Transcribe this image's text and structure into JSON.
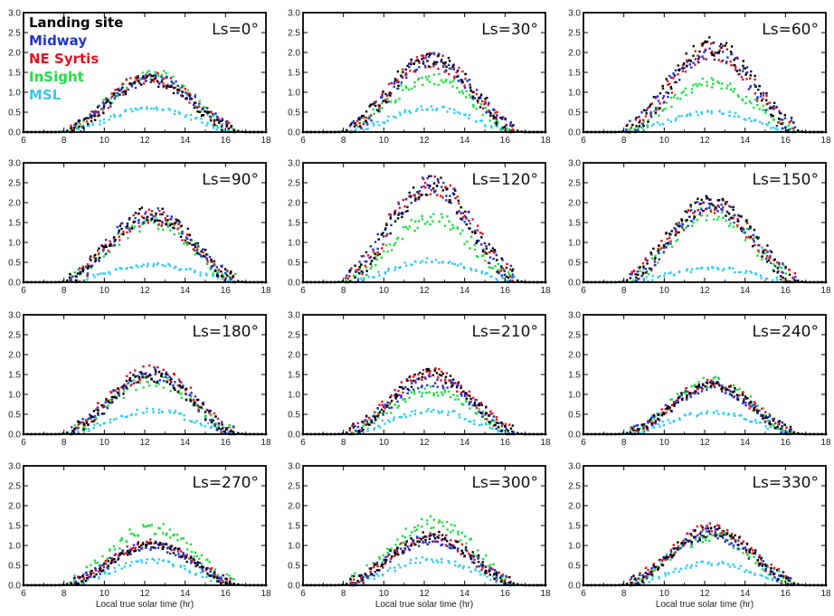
{
  "chart_data": {
    "type": "scatter",
    "xlabel": "Local true solar time (hr)",
    "x_ticks": [
      "6",
      "8",
      "10",
      "12",
      "14",
      "16",
      "18"
    ],
    "y_ticks": [
      "0.0",
      "0.5",
      "1.0",
      "1.5",
      "2.0",
      "2.5",
      "3.0"
    ],
    "xlim": [
      6,
      18
    ],
    "ylim": [
      0,
      3
    ],
    "grid": false,
    "legend": {
      "placement": "top-left of first panel",
      "title": "Landing site",
      "entries": [
        {
          "label": "Midway",
          "color": "#2233cc"
        },
        {
          "label": "NE Syrtis",
          "color": "#e0141e"
        },
        {
          "label": "InSight",
          "color": "#22dd44"
        },
        {
          "label": "MSL",
          "color": "#33ccee"
        }
      ],
      "title_color": "#000000"
    },
    "series_colors": {
      "landing_site": "#000000",
      "midway": "#2233cc",
      "ne_syrtis": "#e0141e",
      "insight": "#22dd44",
      "msl": "#33ccee"
    },
    "panels": [
      {
        "label": "Ls=0°",
        "peaks": {
          "landing_site": 1.3,
          "midway": 1.35,
          "ne_syrtis": 1.4,
          "insight": 1.45,
          "msl": 0.6
        }
      },
      {
        "label": "Ls=30°",
        "peaks": {
          "landing_site": 1.85,
          "midway": 1.8,
          "ne_syrtis": 1.8,
          "insight": 1.35,
          "msl": 0.6
        }
      },
      {
        "label": "Ls=60°",
        "peaks": {
          "landing_site": 2.15,
          "midway": 2.05,
          "ne_syrtis": 2.05,
          "insight": 1.25,
          "msl": 0.5
        }
      },
      {
        "label": "Ls=90°",
        "peaks": {
          "landing_site": 1.75,
          "midway": 1.7,
          "ne_syrtis": 1.65,
          "insight": 1.5,
          "msl": 0.45
        }
      },
      {
        "label": "Ls=120°",
        "peaks": {
          "landing_site": 2.45,
          "midway": 2.45,
          "ne_syrtis": 2.45,
          "insight": 1.6,
          "msl": 0.55
        }
      },
      {
        "label": "Ls=150°",
        "peaks": {
          "landing_site": 2.0,
          "midway": 1.95,
          "ne_syrtis": 1.95,
          "insight": 1.75,
          "msl": 0.35
        }
      },
      {
        "label": "Ls=180°",
        "peaks": {
          "landing_site": 1.45,
          "midway": 1.5,
          "ne_syrtis": 1.6,
          "insight": 1.35,
          "msl": 0.6
        }
      },
      {
        "label": "Ls=210°",
        "peaks": {
          "landing_site": 1.5,
          "midway": 1.35,
          "ne_syrtis": 1.5,
          "insight": 1.1,
          "msl": 0.6
        }
      },
      {
        "label": "Ls=240°",
        "peaks": {
          "landing_site": 1.2,
          "midway": 1.2,
          "ne_syrtis": 1.25,
          "insight": 1.3,
          "msl": 0.55
        }
      },
      {
        "label": "Ls=270°",
        "peaks": {
          "landing_site": 1.0,
          "midway": 1.0,
          "ne_syrtis": 1.05,
          "insight": 1.45,
          "msl": 0.6
        }
      },
      {
        "label": "Ls=300°",
        "peaks": {
          "landing_site": 1.25,
          "midway": 1.15,
          "ne_syrtis": 1.2,
          "insight": 1.6,
          "msl": 0.65
        }
      },
      {
        "label": "Ls=330°",
        "peaks": {
          "landing_site": 1.35,
          "midway": 1.3,
          "ne_syrtis": 1.4,
          "insight": 1.25,
          "msl": 0.55
        }
      }
    ]
  }
}
